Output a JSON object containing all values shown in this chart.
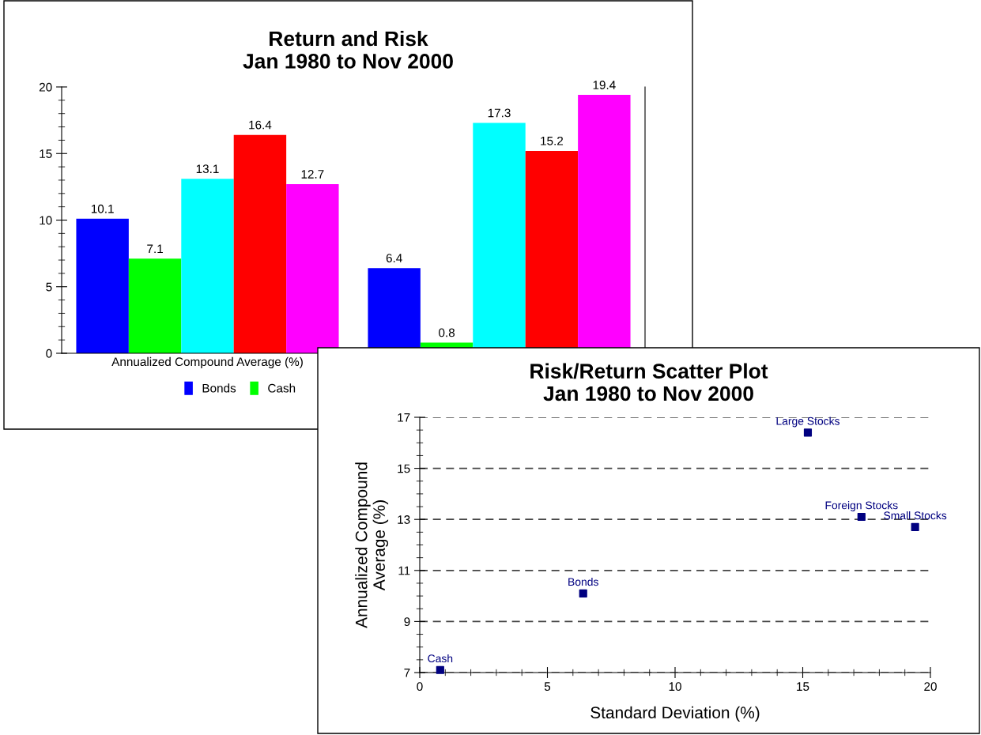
{
  "chart_data": [
    {
      "type": "bar",
      "title": "Return and Risk\nJan 1980 to Nov 2000",
      "categories": [
        "Annualized Compound Average (%)",
        null
      ],
      "ylim": [
        0,
        20
      ],
      "yticks": [
        0,
        5,
        10,
        15,
        20
      ],
      "data_labels": true,
      "legend": "bottom",
      "grid": false,
      "series": [
        {
          "name": "Bonds",
          "color": "#0000ff",
          "values": [
            10.1,
            6.4
          ]
        },
        {
          "name": "Cash",
          "color": "#00ff00",
          "values": [
            7.1,
            0.8
          ]
        },
        {
          "color": "#00ffff",
          "values": [
            13.1,
            17.3
          ]
        },
        {
          "color": "#ff0000",
          "values": [
            16.4,
            15.2
          ]
        },
        {
          "color": "#ff00ff",
          "values": [
            12.7,
            19.4
          ]
        }
      ]
    },
    {
      "type": "scatter",
      "title": "Risk/Return Scatter Plot\nJan 1980 to Nov 2000",
      "xlabel": "Standard Deviation (%)",
      "ylabel": "Annualized Compound\nAverage (%)",
      "xlim": [
        0,
        20
      ],
      "xticks": [
        0,
        5,
        10,
        15,
        20
      ],
      "ylim": [
        7,
        17
      ],
      "yticks": [
        7,
        9,
        11,
        13,
        15,
        17
      ],
      "grid": "y",
      "marker": "square",
      "series": [
        {
          "color": "#000080",
          "x": [
            0.8,
            6.4,
            15.2,
            17.3,
            19.4
          ],
          "values": [
            7.1,
            10.1,
            16.4,
            13.1,
            12.7
          ]
        }
      ],
      "annotations": [
        {
          "text": "Cash",
          "x": 0.8,
          "y": 7.1
        },
        {
          "text": "Bonds",
          "x": 6.4,
          "y": 10.1
        },
        {
          "text": "Large Stocks",
          "x": 15.2,
          "y": 16.4
        },
        {
          "text": "Foreign Stocks",
          "x": 17.3,
          "y": 13.1
        },
        {
          "text": "Small Stocks",
          "x": 19.4,
          "y": 12.7
        }
      ]
    }
  ]
}
